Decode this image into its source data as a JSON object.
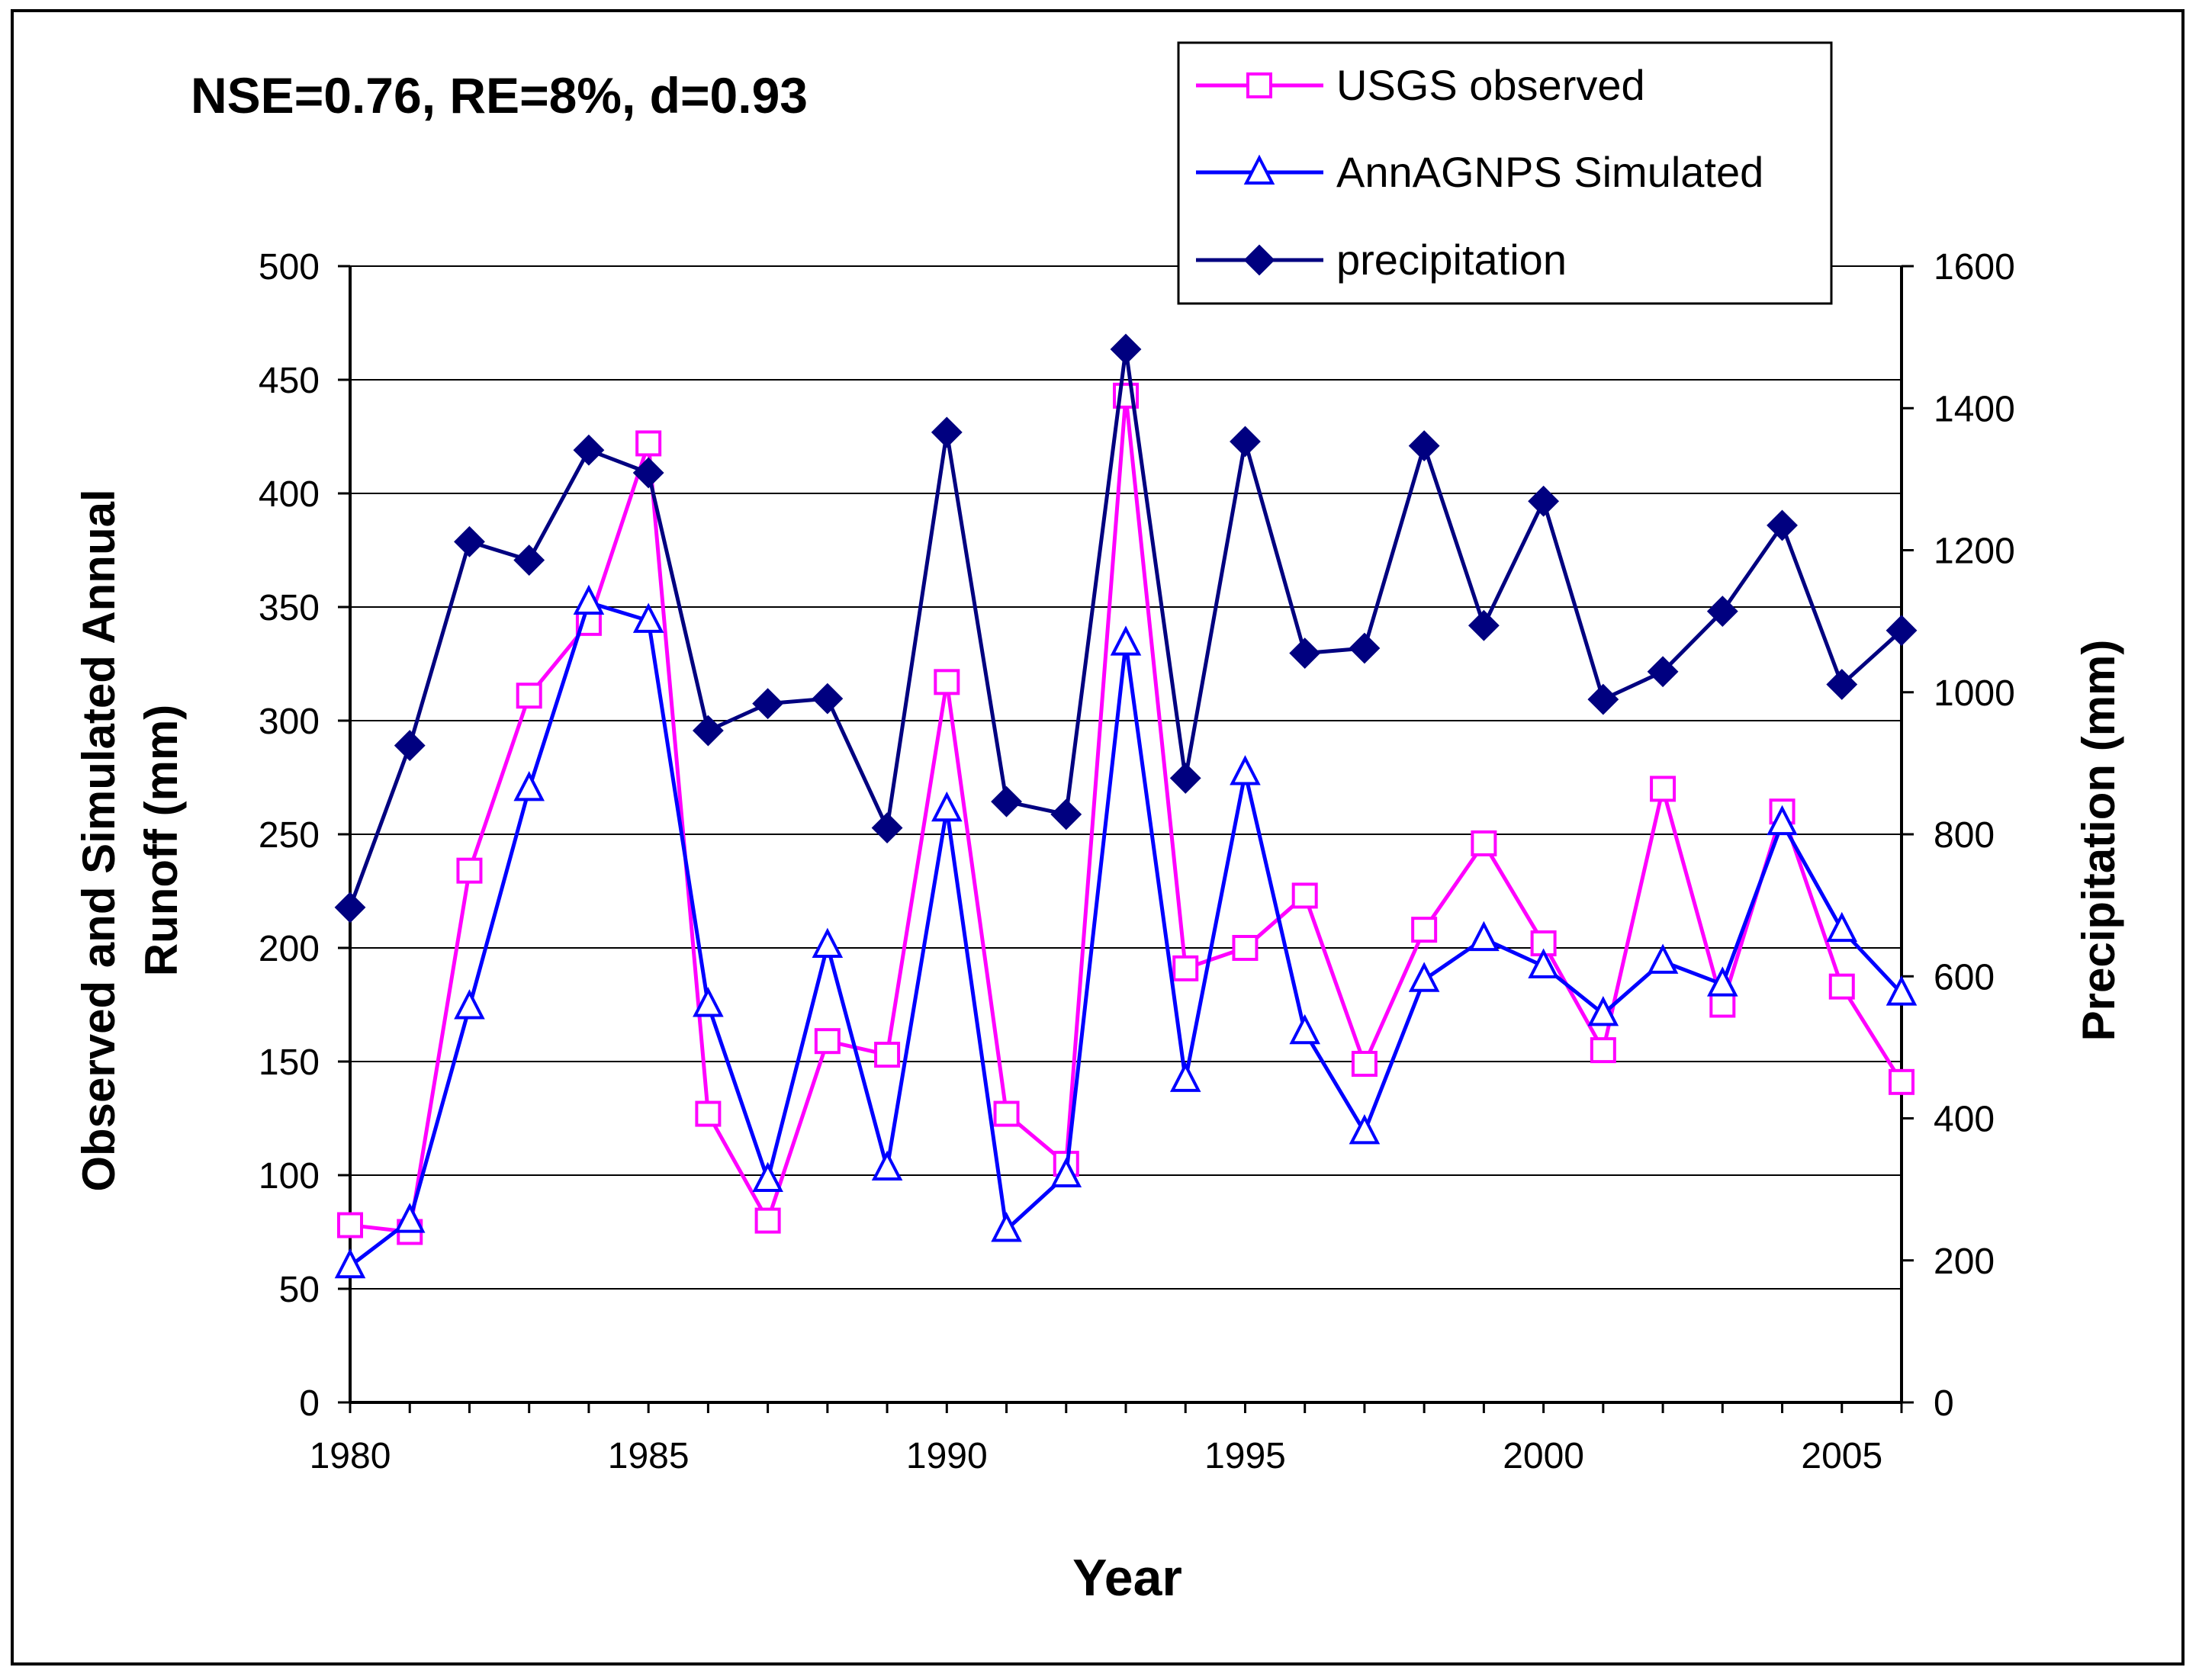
{
  "chart_data": {
    "type": "line",
    "annotation": "NSE=0.76, RE=8%, d=0.93",
    "xlabel": "Year",
    "ylabel_lines": [
      "Observed and Simulated Annual",
      "Runoff (mm)"
    ],
    "y2label": "Precipitation (mm)",
    "x": [
      1980,
      1981,
      1982,
      1983,
      1984,
      1985,
      1986,
      1987,
      1988,
      1989,
      1990,
      1991,
      1992,
      1993,
      1994,
      1995,
      1996,
      1997,
      1998,
      1999,
      2000,
      2001,
      2002,
      2003,
      2004,
      2005,
      2006
    ],
    "xlim": [
      1980,
      2006
    ],
    "ylim": [
      0,
      500
    ],
    "y2lim": [
      0,
      1600
    ],
    "xticks": [
      "1980",
      "1985",
      "1990",
      "1995",
      "2000",
      "2005"
    ],
    "yticks": [
      "0",
      "50",
      "100",
      "150",
      "200",
      "250",
      "300",
      "350",
      "400",
      "450",
      "500"
    ],
    "y2ticks": [
      "0",
      "200",
      "400",
      "600",
      "800",
      "1000",
      "1200",
      "1400",
      "1600"
    ],
    "grid": "horizontal",
    "legend_position": "top-right",
    "series": [
      {
        "name": "USGS observed",
        "axis": "left",
        "color": "#ff00ff",
        "marker": "square-open",
        "values": [
          78,
          75,
          234,
          311,
          343,
          422,
          127,
          80,
          159,
          153,
          317,
          127,
          105,
          443,
          191,
          200,
          223,
          149,
          208,
          246,
          202,
          155,
          270,
          175,
          260,
          183,
          141
        ]
      },
      {
        "name": "AnnAGNPS Simulated",
        "axis": "left",
        "color": "#0000ff",
        "marker": "triangle-open",
        "values": [
          60,
          80,
          174,
          270,
          352,
          344,
          175,
          98,
          201,
          103,
          261,
          76,
          100,
          334,
          142,
          277,
          163,
          119,
          186,
          204,
          192,
          171,
          194,
          184,
          255,
          208,
          180
        ]
      },
      {
        "name": "precipitation",
        "axis": "right",
        "color": "#000080",
        "marker": "diamond-filled",
        "values": [
          697,
          925,
          1212,
          1186,
          1341,
          1309,
          946,
          984,
          991,
          809,
          1366,
          846,
          828,
          1483,
          879,
          1353,
          1055,
          1062,
          1347,
          1094,
          1269,
          990,
          1029,
          1114,
          1235,
          1011,
          1087
        ]
      }
    ]
  }
}
